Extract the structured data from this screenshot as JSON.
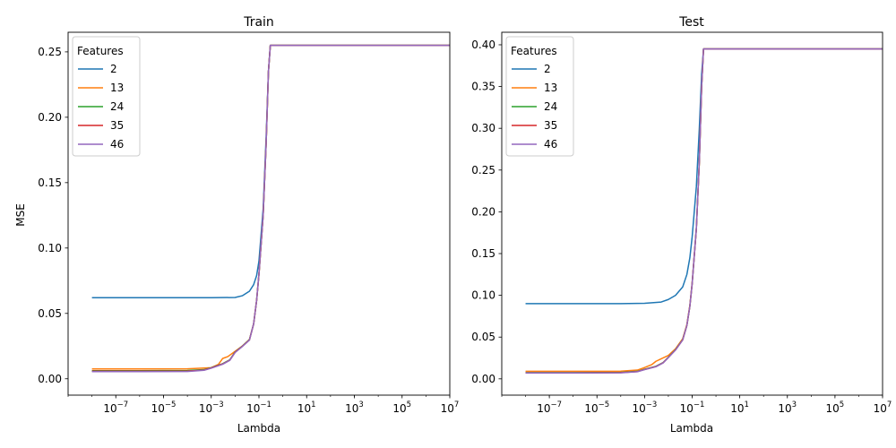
{
  "chart_data": [
    {
      "type": "line",
      "title": "Train",
      "xlabel": "Lambda",
      "ylabel": "MSE",
      "x_scale": "log",
      "x_range": [
        1e-09,
        10000000.0
      ],
      "y_range": [
        -0.0125,
        0.265
      ],
      "x_ticks": [
        1e-07,
        1e-05,
        0.001,
        0.1,
        10.0,
        1000.0,
        100000.0,
        10000000.0
      ],
      "x_tick_labels": [
        {
          "base": "10",
          "exp": "−7"
        },
        {
          "base": "10",
          "exp": "−5"
        },
        {
          "base": "10",
          "exp": "−3"
        },
        {
          "base": "10",
          "exp": "−1"
        },
        {
          "base": "10",
          "exp": "1"
        },
        {
          "base": "10",
          "exp": "3"
        },
        {
          "base": "10",
          "exp": "5"
        },
        {
          "base": "10",
          "exp": "7"
        }
      ],
      "y_ticks": [
        0.0,
        0.05,
        0.1,
        0.15,
        0.2,
        0.25
      ],
      "y_tick_labels": [
        "0.00",
        "0.05",
        "0.10",
        "0.15",
        "0.20",
        "0.25"
      ],
      "grid": false,
      "legend": {
        "title": "Features",
        "position": "top-left"
      },
      "series": [
        {
          "name": "2",
          "color": "#1f77b4",
          "x": [
            1e-08,
            1e-06,
            0.0001,
            0.001,
            0.01,
            0.02,
            0.04,
            0.06,
            0.08,
            0.1,
            0.15,
            0.2,
            0.25,
            0.3,
            1,
            10.0,
            1000.0,
            100000.0,
            10000000.0
          ],
          "y": [
            0.062,
            0.062,
            0.062,
            0.062,
            0.0622,
            0.0635,
            0.067,
            0.072,
            0.079,
            0.09,
            0.13,
            0.185,
            0.235,
            0.255,
            0.255,
            0.255,
            0.255,
            0.255,
            0.255
          ]
        },
        {
          "name": "13",
          "color": "#ff7f0e",
          "x": [
            1e-08,
            1e-06,
            0.0001,
            0.001,
            0.002,
            0.003,
            0.005,
            0.01,
            0.02,
            0.04,
            0.06,
            0.08,
            0.1,
            0.15,
            0.2,
            0.25,
            0.3,
            1,
            10.0,
            1000.0,
            100000.0,
            10000000.0
          ],
          "y": [
            0.0075,
            0.0075,
            0.0076,
            0.0085,
            0.011,
            0.0155,
            0.017,
            0.021,
            0.025,
            0.03,
            0.042,
            0.06,
            0.08,
            0.125,
            0.18,
            0.235,
            0.255,
            0.255,
            0.255,
            0.255,
            0.255,
            0.255
          ]
        },
        {
          "name": "24",
          "color": "#2ca02c",
          "x": [
            1e-08,
            1e-06,
            0.0001,
            0.0005,
            0.001,
            0.003,
            0.006,
            0.01,
            0.02,
            0.04,
            0.06,
            0.08,
            0.1,
            0.15,
            0.2,
            0.25,
            0.3,
            1,
            10.0,
            1000.0,
            100000.0,
            10000000.0
          ],
          "y": [
            0.0062,
            0.0062,
            0.0063,
            0.007,
            0.0085,
            0.0115,
            0.0145,
            0.0205,
            0.025,
            0.03,
            0.042,
            0.06,
            0.08,
            0.125,
            0.18,
            0.235,
            0.255,
            0.255,
            0.255,
            0.255,
            0.255,
            0.255
          ]
        },
        {
          "name": "35",
          "color": "#d62728",
          "x": [
            1e-08,
            1e-06,
            0.0001,
            0.0005,
            0.001,
            0.003,
            0.006,
            0.01,
            0.02,
            0.04,
            0.06,
            0.08,
            0.1,
            0.15,
            0.2,
            0.25,
            0.3,
            1,
            10.0,
            1000.0,
            100000.0,
            10000000.0
          ],
          "y": [
            0.0058,
            0.0058,
            0.0059,
            0.0067,
            0.0083,
            0.0113,
            0.0143,
            0.0203,
            0.0248,
            0.0298,
            0.042,
            0.06,
            0.08,
            0.125,
            0.18,
            0.235,
            0.255,
            0.255,
            0.255,
            0.255,
            0.255,
            0.255
          ]
        },
        {
          "name": "46",
          "color": "#9467bd",
          "x": [
            1e-08,
            1e-06,
            0.0001,
            0.0005,
            0.001,
            0.003,
            0.006,
            0.01,
            0.02,
            0.04,
            0.06,
            0.08,
            0.1,
            0.15,
            0.2,
            0.25,
            0.3,
            1,
            10.0,
            1000.0,
            100000.0,
            10000000.0
          ],
          "y": [
            0.0055,
            0.0055,
            0.0056,
            0.0065,
            0.0081,
            0.0111,
            0.0141,
            0.0201,
            0.0246,
            0.0296,
            0.042,
            0.06,
            0.08,
            0.125,
            0.18,
            0.235,
            0.255,
            0.255,
            0.255,
            0.255,
            0.255,
            0.255
          ]
        }
      ]
    },
    {
      "type": "line",
      "title": "Test",
      "xlabel": "Lambda",
      "ylabel": "",
      "x_scale": "log",
      "x_range": [
        1e-09,
        10000000.0
      ],
      "y_range": [
        -0.0195,
        0.415
      ],
      "x_ticks": [
        1e-07,
        1e-05,
        0.001,
        0.1,
        10.0,
        1000.0,
        100000.0,
        10000000.0
      ],
      "x_tick_labels": [
        {
          "base": "10",
          "exp": "−7"
        },
        {
          "base": "10",
          "exp": "−5"
        },
        {
          "base": "10",
          "exp": "−3"
        },
        {
          "base": "10",
          "exp": "−1"
        },
        {
          "base": "10",
          "exp": "1"
        },
        {
          "base": "10",
          "exp": "3"
        },
        {
          "base": "10",
          "exp": "5"
        },
        {
          "base": "10",
          "exp": "7"
        }
      ],
      "y_ticks": [
        0.0,
        0.05,
        0.1,
        0.15,
        0.2,
        0.25,
        0.3,
        0.35,
        0.4
      ],
      "y_tick_labels": [
        "0.00",
        "0.05",
        "0.10",
        "0.15",
        "0.20",
        "0.25",
        "0.30",
        "0.35",
        "0.40"
      ],
      "grid": false,
      "legend": {
        "title": "Features",
        "position": "top-left"
      },
      "series": [
        {
          "name": "2",
          "color": "#1f77b4",
          "x": [
            1e-08,
            1e-06,
            0.0001,
            0.001,
            0.005,
            0.01,
            0.02,
            0.04,
            0.06,
            0.08,
            0.1,
            0.15,
            0.2,
            0.25,
            0.3,
            1,
            10.0,
            1000.0,
            100000.0,
            10000000.0
          ],
          "y": [
            0.09,
            0.09,
            0.09,
            0.0905,
            0.092,
            0.095,
            0.1,
            0.11,
            0.125,
            0.145,
            0.17,
            0.23,
            0.3,
            0.365,
            0.395,
            0.395,
            0.395,
            0.395,
            0.395,
            0.395
          ]
        },
        {
          "name": "13",
          "color": "#ff7f0e",
          "x": [
            1e-08,
            1e-06,
            0.0001,
            0.0005,
            0.001,
            0.002,
            0.003,
            0.005,
            0.01,
            0.02,
            0.04,
            0.06,
            0.08,
            0.1,
            0.15,
            0.2,
            0.25,
            0.3,
            1,
            10.0,
            1000.0,
            100000.0,
            10000000.0
          ],
          "y": [
            0.009,
            0.009,
            0.0092,
            0.0105,
            0.0135,
            0.017,
            0.021,
            0.024,
            0.028,
            0.036,
            0.048,
            0.065,
            0.088,
            0.115,
            0.18,
            0.26,
            0.35,
            0.395,
            0.395,
            0.395,
            0.395,
            0.395,
            0.395
          ]
        },
        {
          "name": "24",
          "color": "#2ca02c",
          "x": [
            1e-08,
            1e-06,
            0.0001,
            0.0005,
            0.001,
            0.003,
            0.006,
            0.01,
            0.02,
            0.04,
            0.06,
            0.08,
            0.1,
            0.15,
            0.2,
            0.25,
            0.3,
            1,
            10.0,
            1000.0,
            100000.0,
            10000000.0
          ],
          "y": [
            0.0075,
            0.0075,
            0.0077,
            0.009,
            0.0115,
            0.015,
            0.0195,
            0.026,
            0.035,
            0.047,
            0.064,
            0.087,
            0.114,
            0.18,
            0.26,
            0.35,
            0.395,
            0.395,
            0.395,
            0.395,
            0.395,
            0.395
          ]
        },
        {
          "name": "35",
          "color": "#d62728",
          "x": [
            1e-08,
            1e-06,
            0.0001,
            0.0005,
            0.001,
            0.003,
            0.006,
            0.01,
            0.02,
            0.04,
            0.06,
            0.08,
            0.1,
            0.15,
            0.2,
            0.25,
            0.3,
            1,
            10.0,
            1000.0,
            100000.0,
            10000000.0
          ],
          "y": [
            0.0072,
            0.0072,
            0.0074,
            0.0087,
            0.0112,
            0.0147,
            0.0192,
            0.0257,
            0.0347,
            0.0467,
            0.064,
            0.087,
            0.114,
            0.18,
            0.26,
            0.35,
            0.395,
            0.395,
            0.395,
            0.395,
            0.395,
            0.395
          ]
        },
        {
          "name": "46",
          "color": "#9467bd",
          "x": [
            1e-08,
            1e-06,
            0.0001,
            0.0005,
            0.001,
            0.003,
            0.006,
            0.01,
            0.02,
            0.04,
            0.06,
            0.08,
            0.1,
            0.15,
            0.2,
            0.25,
            0.3,
            1,
            10.0,
            1000.0,
            100000.0,
            10000000.0
          ],
          "y": [
            0.007,
            0.007,
            0.0072,
            0.0085,
            0.011,
            0.0145,
            0.019,
            0.0255,
            0.0345,
            0.0465,
            0.064,
            0.087,
            0.114,
            0.18,
            0.26,
            0.35,
            0.395,
            0.395,
            0.395,
            0.395,
            0.395,
            0.395
          ]
        }
      ]
    }
  ]
}
